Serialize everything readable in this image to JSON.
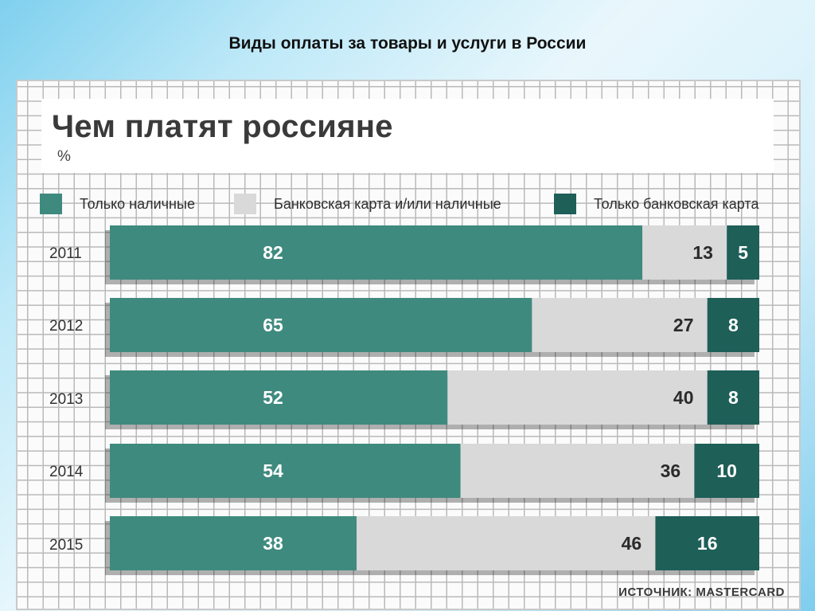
{
  "slide": {
    "title": "Виды оплаты за товары и услуги в России"
  },
  "colors": {
    "cash": "#3f8a7e",
    "mixed": "#d9d9d9",
    "card": "#1e5f58",
    "label_light": "#ffffff",
    "label_dark": "#2b2b2b"
  },
  "chart_data": {
    "type": "bar",
    "orientation": "horizontal",
    "stacked": true,
    "title": "Чем платят россияне",
    "unit": "%",
    "categories": [
      "2011",
      "2012",
      "2013",
      "2014",
      "2015"
    ],
    "series": [
      {
        "name": "Только наличные",
        "values": [
          82,
          65,
          52,
          54,
          38
        ]
      },
      {
        "name": "Банковская карта и/или наличные",
        "values": [
          13,
          27,
          40,
          36,
          46
        ]
      },
      {
        "name": "Только банковская карта",
        "values": [
          5,
          8,
          8,
          10,
          16
        ]
      }
    ],
    "xlim": [
      0,
      100
    ],
    "grid": true,
    "legend_position": "top",
    "source": "ИСТОЧНИК: MASTERCARD"
  }
}
